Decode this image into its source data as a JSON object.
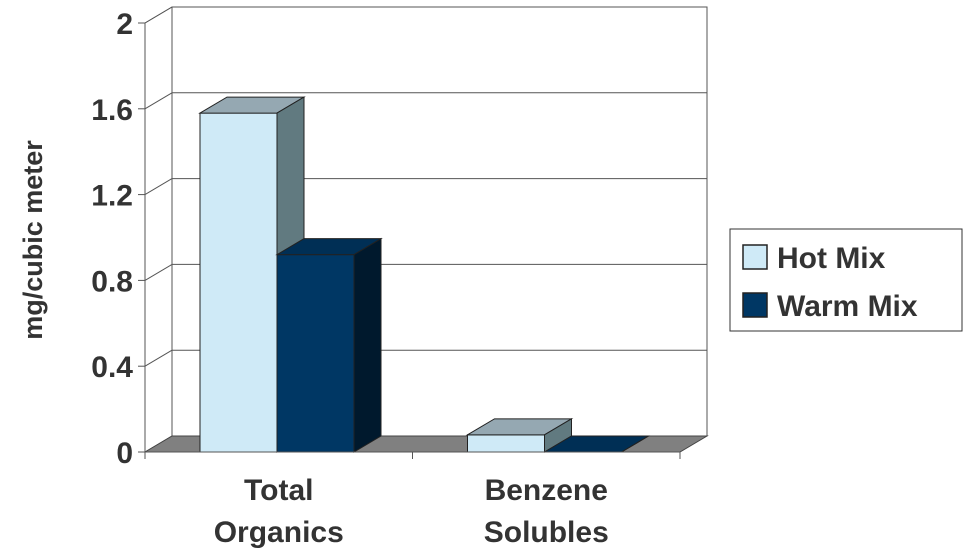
{
  "chart_data": {
    "type": "bar",
    "categories": [
      "Total Organics",
      "Benzene Solubles"
    ],
    "category_lines": [
      [
        "Total",
        "Organics"
      ],
      [
        "Benzene",
        "Solubles"
      ]
    ],
    "series": [
      {
        "name": "Hot Mix",
        "values": [
          1.58,
          0.08
        ],
        "color": "#cfeaf7"
      },
      {
        "name": "Warm Mix",
        "values": [
          0.92,
          0.0
        ],
        "color": "#003764"
      }
    ],
    "title": "",
    "xlabel": "",
    "ylabel": "mg/cubic meter",
    "ylim": [
      0,
      2
    ],
    "yticks": [
      "0",
      "0.4",
      "0.8",
      "1.2",
      "1.6",
      "2"
    ],
    "grid": true,
    "legend_position": "right",
    "style_3d": true,
    "floor_color": "#808080"
  }
}
